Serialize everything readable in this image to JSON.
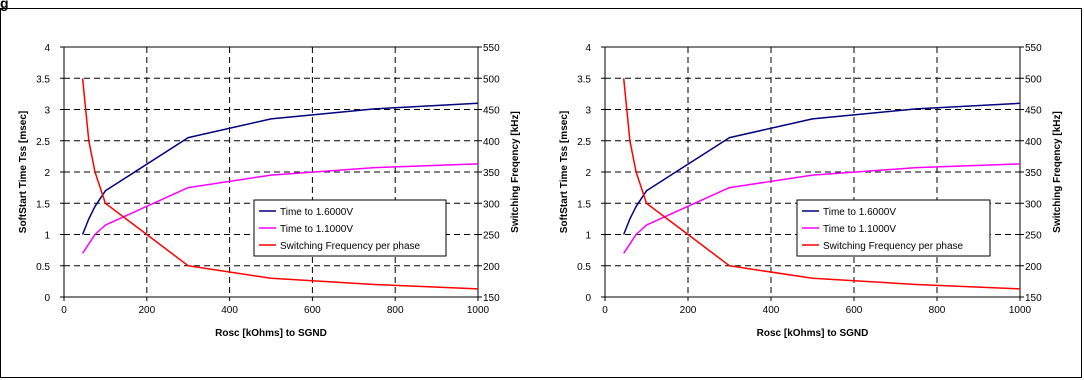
{
  "figure": {
    "title": "g"
  },
  "chart_data": [
    {
      "type": "line",
      "xlabel": "Rosc [kOhms] to SGND",
      "ylabel_left": "SoftStart Time Tss [msec]",
      "ylabel_right": "Switching Freqency [kHz]",
      "xlim": [
        0,
        1000
      ],
      "ylim_left": [
        0,
        4
      ],
      "ylim_right": [
        150,
        550
      ],
      "xticks": [
        "0",
        "200",
        "400",
        "600",
        "800",
        "1000"
      ],
      "yticks_left": [
        "0",
        "0.5",
        "1",
        "1.5",
        "2",
        "2.5",
        "3",
        "3.5",
        "4"
      ],
      "yticks_right": [
        "150",
        "200",
        "250",
        "300",
        "350",
        "400",
        "450",
        "500",
        "550"
      ],
      "grid": true,
      "legend_position": "right-middle",
      "series": [
        {
          "name": "Time to 1.6000V",
          "axis": "left",
          "color": "#00007f",
          "x": [
            45,
            60,
            75,
            100,
            300,
            500,
            750,
            1000
          ],
          "y": [
            1.0,
            1.25,
            1.45,
            1.7,
            2.55,
            2.85,
            3.01,
            3.1
          ]
        },
        {
          "name": "Time to 1.1000V",
          "axis": "left",
          "color": "#ff00ff",
          "x": [
            45,
            60,
            75,
            100,
            300,
            500,
            750,
            1000
          ],
          "y": [
            0.7,
            0.85,
            1.0,
            1.15,
            1.75,
            1.95,
            2.07,
            2.13
          ]
        },
        {
          "name": "Switching Frequency per phase",
          "axis": "right",
          "color": "#ff0000",
          "x": [
            45,
            60,
            75,
            100,
            200,
            300,
            500,
            750,
            1000
          ],
          "y": [
            500,
            400,
            350,
            300,
            250,
            200,
            180,
            170,
            163
          ]
        }
      ]
    },
    {
      "type": "line",
      "xlabel": "Rosc [kOhms] to SGND",
      "ylabel_left": "SoftStart Time Tss [msec]",
      "ylabel_right": "Switching Freqency [kHz]",
      "xlim": [
        0,
        1000
      ],
      "ylim_left": [
        0,
        4
      ],
      "ylim_right": [
        150,
        550
      ],
      "xticks": [
        "0",
        "200",
        "400",
        "600",
        "800",
        "1000"
      ],
      "yticks_left": [
        "0",
        "0.5",
        "1",
        "1.5",
        "2",
        "2.5",
        "3",
        "3.5",
        "4"
      ],
      "yticks_right": [
        "150",
        "200",
        "250",
        "300",
        "350",
        "400",
        "450",
        "500",
        "550"
      ],
      "grid": true,
      "legend_position": "right-middle",
      "series": [
        {
          "name": "Time to 1.6000V",
          "axis": "left",
          "color": "#00007f",
          "x": [
            45,
            60,
            75,
            100,
            300,
            500,
            750,
            1000
          ],
          "y": [
            1.0,
            1.25,
            1.45,
            1.7,
            2.55,
            2.85,
            3.01,
            3.1
          ]
        },
        {
          "name": "Time to 1.1000V",
          "axis": "left",
          "color": "#ff00ff",
          "x": [
            45,
            60,
            75,
            100,
            300,
            500,
            750,
            1000
          ],
          "y": [
            0.7,
            0.85,
            1.0,
            1.15,
            1.75,
            1.95,
            2.07,
            2.13
          ]
        },
        {
          "name": "Switching Frequency per phase",
          "axis": "right",
          "color": "#ff0000",
          "x": [
            45,
            60,
            75,
            100,
            200,
            300,
            500,
            750,
            1000
          ],
          "y": [
            500,
            400,
            350,
            300,
            250,
            200,
            180,
            170,
            163
          ]
        }
      ]
    }
  ]
}
